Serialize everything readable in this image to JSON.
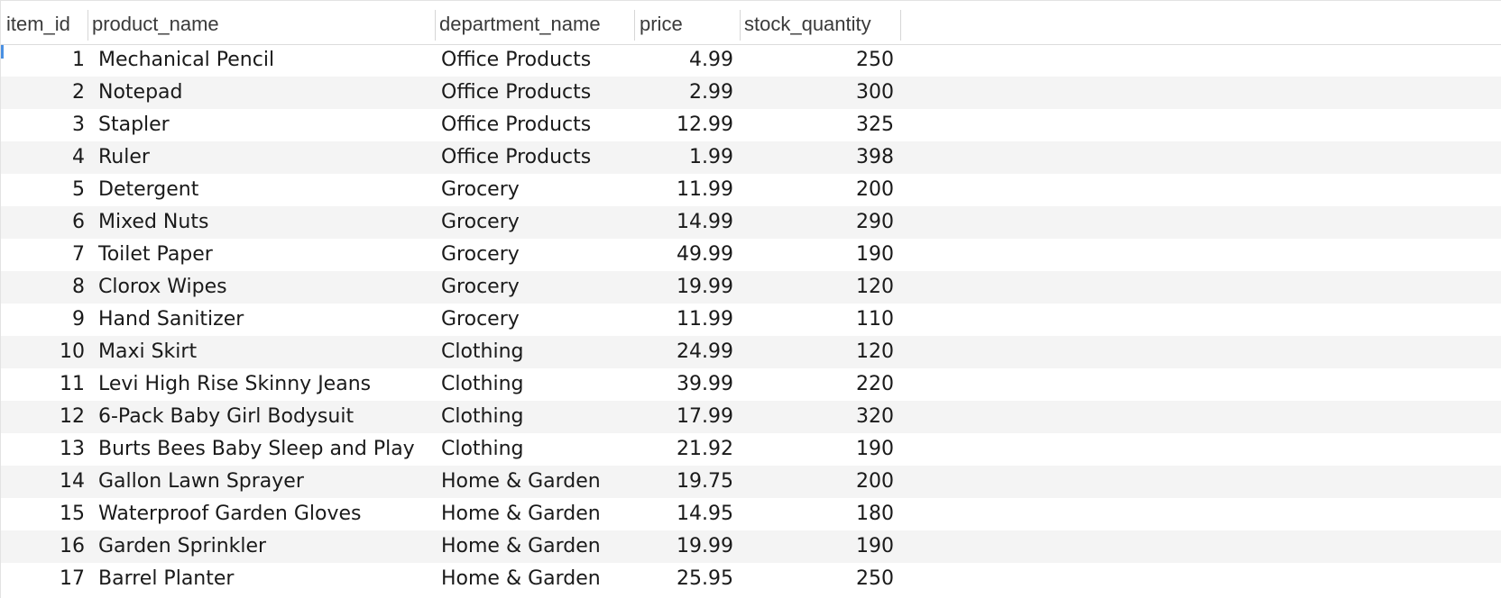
{
  "table": {
    "columns": [
      "item_id",
      "product_name",
      "department_name",
      "price",
      "stock_quantity"
    ],
    "rows": [
      {
        "item_id": "1",
        "product_name": "Mechanical Pencil",
        "department_name": "Office Products",
        "price": "4.99",
        "stock_quantity": "250"
      },
      {
        "item_id": "2",
        "product_name": "Notepad",
        "department_name": "Office Products",
        "price": "2.99",
        "stock_quantity": "300"
      },
      {
        "item_id": "3",
        "product_name": "Stapler",
        "department_name": "Office Products",
        "price": "12.99",
        "stock_quantity": "325"
      },
      {
        "item_id": "4",
        "product_name": "Ruler",
        "department_name": "Office Products",
        "price": "1.99",
        "stock_quantity": "398"
      },
      {
        "item_id": "5",
        "product_name": "Detergent",
        "department_name": "Grocery",
        "price": "11.99",
        "stock_quantity": "200"
      },
      {
        "item_id": "6",
        "product_name": "Mixed Nuts",
        "department_name": "Grocery",
        "price": "14.99",
        "stock_quantity": "290"
      },
      {
        "item_id": "7",
        "product_name": "Toilet Paper",
        "department_name": "Grocery",
        "price": "49.99",
        "stock_quantity": "190"
      },
      {
        "item_id": "8",
        "product_name": "Clorox Wipes",
        "department_name": "Grocery",
        "price": "19.99",
        "stock_quantity": "120"
      },
      {
        "item_id": "9",
        "product_name": "Hand Sanitizer",
        "department_name": "Grocery",
        "price": "11.99",
        "stock_quantity": "110"
      },
      {
        "item_id": "10",
        "product_name": "Maxi Skirt",
        "department_name": "Clothing",
        "price": "24.99",
        "stock_quantity": "120"
      },
      {
        "item_id": "11",
        "product_name": "Levi High Rise Skinny Jeans",
        "department_name": "Clothing",
        "price": "39.99",
        "stock_quantity": "220"
      },
      {
        "item_id": "12",
        "product_name": "6-Pack Baby Girl Bodysuit",
        "department_name": "Clothing",
        "price": "17.99",
        "stock_quantity": "320"
      },
      {
        "item_id": "13",
        "product_name": "Burts Bees Baby Sleep and Play",
        "department_name": "Clothing",
        "price": "21.92",
        "stock_quantity": "190"
      },
      {
        "item_id": "14",
        "product_name": "Gallon Lawn Sprayer",
        "department_name": "Home & Garden",
        "price": "19.75",
        "stock_quantity": "200"
      },
      {
        "item_id": "15",
        "product_name": "Waterproof Garden Gloves",
        "department_name": "Home & Garden",
        "price": "14.95",
        "stock_quantity": "180"
      },
      {
        "item_id": "16",
        "product_name": "Garden Sprinkler",
        "department_name": "Home & Garden",
        "price": "19.99",
        "stock_quantity": "190"
      },
      {
        "item_id": "17",
        "product_name": "Barrel Planter",
        "department_name": "Home & Garden",
        "price": "25.95",
        "stock_quantity": "250"
      }
    ]
  },
  "colors": {
    "alternate_row": "#f4f4f4",
    "selection_marker": "#4a90e2"
  }
}
